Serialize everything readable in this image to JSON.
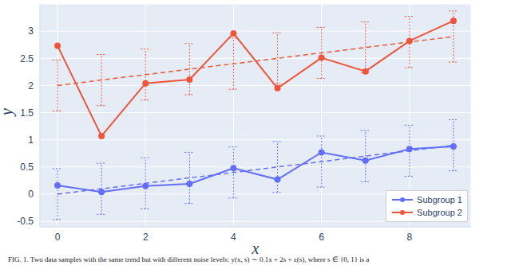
{
  "chart_data": {
    "type": "line",
    "x_label": "x",
    "y_label": "y",
    "caption": "FIG. 1. Two data samples with the same trend but with different noise levels: y(x, s) ∼ 0.1x + 2s + ε(s), where s ∈ {0, 1} is a",
    "x": [
      0,
      1,
      2,
      3,
      4,
      5,
      6,
      7,
      8,
      9
    ],
    "series": [
      {
        "name": "Subgroup 1",
        "color": "#636efa",
        "marker": "circle",
        "line_style": "solid",
        "values": [
          0.16,
          0.04,
          0.15,
          0.19,
          0.48,
          0.27,
          0.77,
          0.62,
          0.83,
          0.88
        ],
        "trend": [
          0,
          0.1,
          0.2,
          0.3,
          0.4,
          0.5,
          0.6,
          0.7,
          0.8,
          0.9
        ],
        "error": [
          0.47,
          0.47,
          0.47,
          0.47,
          0.47,
          0.47,
          0.47,
          0.47,
          0.47,
          0.47
        ]
      },
      {
        "name": "Subgroup 2",
        "color": "#ef553b",
        "marker": "circle",
        "line_style": "solid",
        "values": [
          2.73,
          1.07,
          2.04,
          2.11,
          2.96,
          1.95,
          2.51,
          2.26,
          2.82,
          3.19
        ],
        "trend": [
          2,
          2.1,
          2.2,
          2.3,
          2.4,
          2.5,
          2.6,
          2.7,
          2.8,
          2.9
        ],
        "error": [
          0.47,
          0.47,
          0.47,
          0.47,
          0.47,
          0.47,
          0.47,
          0.47,
          0.47,
          0.47
        ]
      }
    ],
    "xlim": [
      -0.4,
      9.4
    ],
    "xticks": [
      0,
      2,
      4,
      6,
      8
    ],
    "ylim": [
      -0.6,
      3.5
    ],
    "yticks": [
      -0.5,
      0,
      0.5,
      1,
      1.5,
      2,
      2.5,
      3
    ],
    "grid": true,
    "legend": "lower right"
  }
}
